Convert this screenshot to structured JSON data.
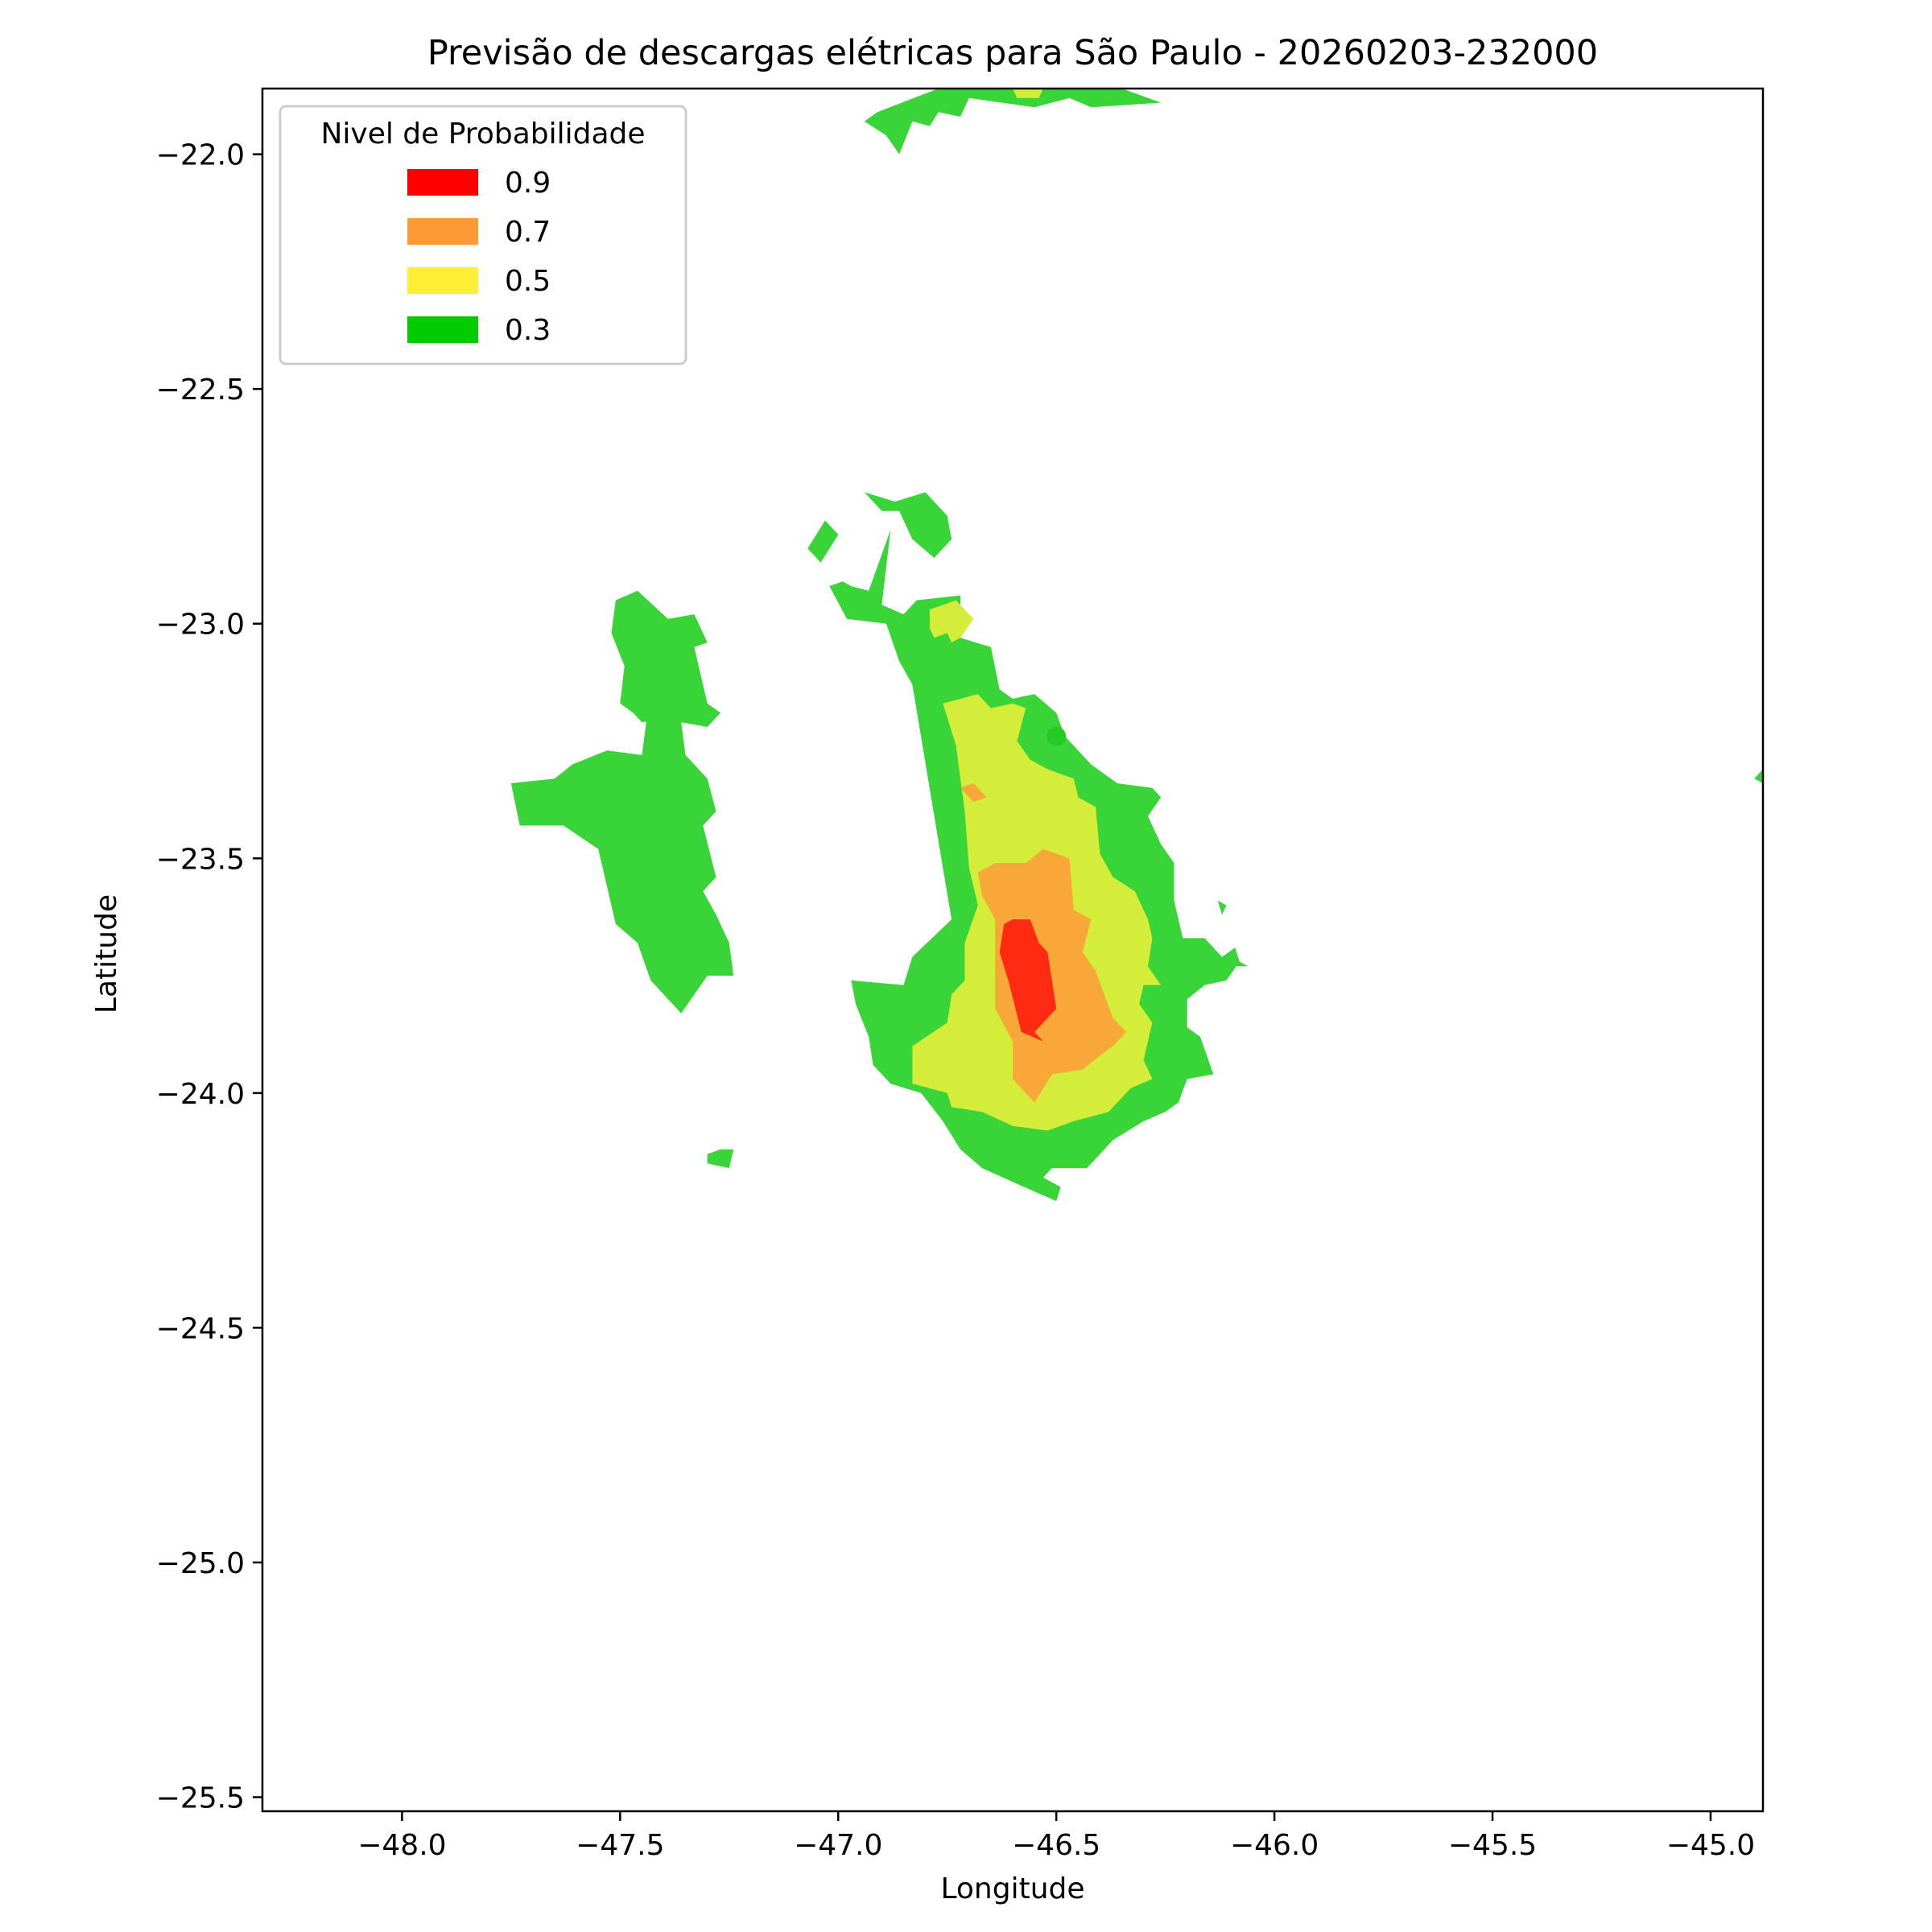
{
  "chart_data": {
    "type": "contour-map",
    "title": "Previsão de descargas elétricas para São Paulo - 20260203-232000",
    "xlabel": "Longitude",
    "ylabel": "Latitude",
    "xlim": [
      -48.32,
      -44.88
    ],
    "ylim": [
      -25.53,
      -21.86
    ],
    "x_ticks": [
      {
        "value": -48.0,
        "label": "−48.0"
      },
      {
        "value": -47.5,
        "label": "−47.5"
      },
      {
        "value": -47.0,
        "label": "−47.0"
      },
      {
        "value": -46.5,
        "label": "−46.5"
      },
      {
        "value": -46.0,
        "label": "−46.0"
      },
      {
        "value": -45.5,
        "label": "−45.5"
      },
      {
        "value": -45.0,
        "label": "−45.0"
      }
    ],
    "y_ticks": [
      {
        "value": -22.0,
        "label": "−22.0"
      },
      {
        "value": -22.5,
        "label": "−22.5"
      },
      {
        "value": -23.0,
        "label": "−23.0"
      },
      {
        "value": -23.5,
        "label": "−23.5"
      },
      {
        "value": -24.0,
        "label": "−24.0"
      },
      {
        "value": -24.5,
        "label": "−24.5"
      },
      {
        "value": -25.0,
        "label": "−25.0"
      },
      {
        "value": -25.5,
        "label": "−25.5"
      }
    ],
    "legend": {
      "title": "Nivel de Probabilidade",
      "placement": "upper-left",
      "entries": [
        {
          "label": "0.9",
          "color": "#ff0000"
        },
        {
          "label": "0.7",
          "color": "#ff9933"
        },
        {
          "label": "0.5",
          "color": "#ffee33"
        },
        {
          "label": "0.3",
          "color": "#00cc00"
        }
      ]
    },
    "fill_colors": {
      "0.3": "#38d438",
      "0.5": "#d4ed38",
      "0.7": "#f7a838",
      "0.9": "#ff2a12"
    },
    "marker": {
      "lon": -46.5,
      "lat": -23.24,
      "color": "#22cc22"
    },
    "regions": [
      {
        "level": "0.3",
        "points": [
          [
            -46.77,
            -21.86
          ],
          [
            -46.35,
            -21.86
          ],
          [
            -46.26,
            -21.89
          ],
          [
            -46.42,
            -21.9
          ],
          [
            -46.47,
            -21.88
          ],
          [
            -46.55,
            -21.9
          ],
          [
            -46.7,
            -21.88
          ],
          [
            -46.72,
            -21.92
          ],
          [
            -46.77,
            -21.91
          ],
          [
            -46.79,
            -21.94
          ],
          [
            -46.83,
            -21.93
          ],
          [
            -46.86,
            -22.0
          ],
          [
            -46.89,
            -21.96
          ],
          [
            -46.94,
            -21.93
          ],
          [
            -46.91,
            -21.91
          ]
        ]
      },
      {
        "level": "0.5",
        "points": [
          [
            -46.6,
            -21.86
          ],
          [
            -46.53,
            -21.86
          ],
          [
            -46.54,
            -21.88
          ],
          [
            -46.59,
            -21.88
          ]
        ]
      },
      {
        "level": "0.3",
        "points": [
          [
            -47.51,
            -22.95
          ],
          [
            -47.46,
            -22.93
          ],
          [
            -47.39,
            -22.99
          ],
          [
            -47.33,
            -22.98
          ],
          [
            -47.3,
            -23.04
          ],
          [
            -47.33,
            -23.05
          ],
          [
            -47.3,
            -23.17
          ],
          [
            -47.27,
            -23.19
          ],
          [
            -47.3,
            -23.22
          ],
          [
            -47.36,
            -23.21
          ],
          [
            -47.35,
            -23.28
          ],
          [
            -47.3,
            -23.33
          ],
          [
            -47.28,
            -23.4
          ],
          [
            -47.31,
            -23.43
          ],
          [
            -47.28,
            -23.54
          ],
          [
            -47.31,
            -23.57
          ],
          [
            -47.28,
            -23.62
          ],
          [
            -47.25,
            -23.68
          ],
          [
            -47.24,
            -23.75
          ],
          [
            -47.3,
            -23.75
          ],
          [
            -47.36,
            -23.83
          ],
          [
            -47.43,
            -23.76
          ],
          [
            -47.46,
            -23.68
          ],
          [
            -47.51,
            -23.64
          ],
          [
            -47.55,
            -23.48
          ],
          [
            -47.63,
            -23.43
          ],
          [
            -47.73,
            -23.43
          ],
          [
            -47.75,
            -23.34
          ],
          [
            -47.65,
            -23.33
          ],
          [
            -47.61,
            -23.3
          ],
          [
            -47.53,
            -23.27
          ],
          [
            -47.45,
            -23.28
          ],
          [
            -47.44,
            -23.21
          ],
          [
            -47.5,
            -23.17
          ],
          [
            -47.49,
            -23.09
          ],
          [
            -47.52,
            -23.02
          ]
        ]
      },
      {
        "level": "0.3",
        "points": [
          [
            -47.04,
            -22.87
          ],
          [
            -47.0,
            -22.81
          ],
          [
            -47.03,
            -22.78
          ],
          [
            -47.07,
            -22.84
          ]
        ]
      },
      {
        "level": "0.3",
        "points": [
          [
            -46.94,
            -22.72
          ],
          [
            -46.9,
            -22.76
          ],
          [
            -46.86,
            -22.76
          ],
          [
            -46.83,
            -22.82
          ],
          [
            -46.78,
            -22.86
          ],
          [
            -46.74,
            -22.82
          ],
          [
            -46.75,
            -22.77
          ],
          [
            -46.8,
            -22.72
          ],
          [
            -46.87,
            -22.74
          ]
        ]
      },
      {
        "level": "0.3",
        "points": [
          [
            -47.02,
            -22.92
          ],
          [
            -46.99,
            -22.91
          ],
          [
            -46.97,
            -22.92
          ],
          [
            -46.93,
            -22.93
          ],
          [
            -46.88,
            -22.8
          ],
          [
            -46.9,
            -22.96
          ],
          [
            -46.85,
            -22.98
          ],
          [
            -46.82,
            -22.95
          ],
          [
            -46.72,
            -22.94
          ],
          [
            -46.72,
            -23.03
          ],
          [
            -46.65,
            -23.05
          ],
          [
            -46.63,
            -23.14
          ],
          [
            -46.6,
            -23.16
          ],
          [
            -46.55,
            -23.15
          ],
          [
            -46.5,
            -23.19
          ],
          [
            -46.48,
            -23.24
          ],
          [
            -46.45,
            -23.27
          ],
          [
            -46.42,
            -23.3
          ],
          [
            -46.36,
            -23.34
          ],
          [
            -46.28,
            -23.35
          ],
          [
            -46.26,
            -23.37
          ],
          [
            -46.29,
            -23.41
          ],
          [
            -46.26,
            -23.47
          ],
          [
            -46.23,
            -23.51
          ],
          [
            -46.23,
            -23.59
          ],
          [
            -46.21,
            -23.67
          ],
          [
            -46.16,
            -23.67
          ],
          [
            -46.12,
            -23.71
          ],
          [
            -46.09,
            -23.69
          ],
          [
            -46.08,
            -23.72
          ],
          [
            -46.11,
            -23.76
          ],
          [
            -46.16,
            -23.77
          ],
          [
            -46.2,
            -23.8
          ],
          [
            -46.2,
            -23.86
          ],
          [
            -46.17,
            -23.88
          ],
          [
            -46.14,
            -23.96
          ],
          [
            -46.2,
            -23.97
          ],
          [
            -46.22,
            -24.02
          ],
          [
            -46.25,
            -24.04
          ],
          [
            -46.3,
            -24.06
          ],
          [
            -46.37,
            -24.1
          ],
          [
            -46.43,
            -24.16
          ],
          [
            -46.51,
            -24.16
          ],
          [
            -46.53,
            -24.18
          ],
          [
            -46.49,
            -24.2
          ],
          [
            -46.5,
            -24.23
          ],
          [
            -46.55,
            -24.21
          ],
          [
            -46.67,
            -24.16
          ],
          [
            -46.72,
            -24.12
          ],
          [
            -46.76,
            -24.06
          ],
          [
            -46.81,
            -24.0
          ],
          [
            -46.88,
            -23.98
          ],
          [
            -46.92,
            -23.94
          ],
          [
            -46.93,
            -23.88
          ],
          [
            -46.96,
            -23.81
          ],
          [
            -46.97,
            -23.76
          ],
          [
            -46.85,
            -23.77
          ],
          [
            -46.83,
            -23.71
          ],
          [
            -46.74,
            -23.63
          ],
          [
            -46.76,
            -23.52
          ],
          [
            -46.83,
            -23.13
          ],
          [
            -46.86,
            -23.08
          ],
          [
            -46.89,
            -23.0
          ],
          [
            -46.98,
            -22.99
          ]
        ]
      },
      {
        "level": "0.3",
        "points": [
          [
            -47.39,
            -23.17
          ],
          [
            -47.45,
            -23.17
          ],
          [
            -47.47,
            -23.19
          ],
          [
            -47.45,
            -23.21
          ],
          [
            -47.4,
            -23.2
          ]
        ]
      },
      {
        "level": "0.3",
        "points": [
          [
            -47.24,
            -24.12
          ],
          [
            -47.25,
            -24.16
          ],
          [
            -47.3,
            -24.15
          ],
          [
            -47.3,
            -24.13
          ],
          [
            -47.27,
            -24.12
          ]
        ]
      },
      {
        "level": "0.3",
        "points": [
          [
            -46.08,
            -23.72
          ],
          [
            -46.06,
            -23.73
          ],
          [
            -46.09,
            -23.73
          ]
        ]
      },
      {
        "level": "0.3",
        "points": [
          [
            -46.13,
            -23.59
          ],
          [
            -46.11,
            -23.6
          ],
          [
            -46.12,
            -23.62
          ]
        ]
      },
      {
        "level": "0.3",
        "points": [
          [
            -44.88,
            -23.31
          ],
          [
            -44.9,
            -23.33
          ],
          [
            -44.88,
            -23.34
          ]
        ]
      },
      {
        "level": "0.5",
        "points": [
          [
            -46.79,
            -22.97
          ],
          [
            -46.73,
            -22.95
          ],
          [
            -46.69,
            -22.99
          ],
          [
            -46.72,
            -23.03
          ],
          [
            -46.74,
            -23.04
          ],
          [
            -46.75,
            -23.02
          ],
          [
            -46.78,
            -23.03
          ],
          [
            -46.79,
            -23.01
          ]
        ]
      },
      {
        "level": "0.5",
        "points": [
          [
            -46.76,
            -23.17
          ],
          [
            -46.68,
            -23.15
          ],
          [
            -46.65,
            -23.18
          ],
          [
            -46.6,
            -23.17
          ],
          [
            -46.57,
            -23.18
          ],
          [
            -46.59,
            -23.25
          ],
          [
            -46.56,
            -23.29
          ],
          [
            -46.52,
            -23.31
          ],
          [
            -46.46,
            -23.33
          ],
          [
            -46.45,
            -23.37
          ],
          [
            -46.41,
            -23.39
          ],
          [
            -46.4,
            -23.49
          ],
          [
            -46.37,
            -23.54
          ],
          [
            -46.32,
            -23.57
          ],
          [
            -46.29,
            -23.63
          ],
          [
            -46.28,
            -23.67
          ],
          [
            -46.29,
            -23.73
          ],
          [
            -46.26,
            -23.77
          ],
          [
            -46.3,
            -23.77
          ],
          [
            -46.31,
            -23.81
          ],
          [
            -46.28,
            -23.85
          ],
          [
            -46.3,
            -23.93
          ],
          [
            -46.28,
            -23.97
          ],
          [
            -46.33,
            -23.99
          ],
          [
            -46.38,
            -24.04
          ],
          [
            -46.46,
            -24.06
          ],
          [
            -46.52,
            -24.08
          ],
          [
            -46.6,
            -24.07
          ],
          [
            -46.67,
            -24.04
          ],
          [
            -46.74,
            -24.03
          ],
          [
            -46.75,
            -24.0
          ],
          [
            -46.83,
            -23.98
          ],
          [
            -46.83,
            -23.9
          ],
          [
            -46.75,
            -23.85
          ],
          [
            -46.74,
            -23.79
          ],
          [
            -46.71,
            -23.76
          ],
          [
            -46.71,
            -23.68
          ],
          [
            -46.68,
            -23.6
          ],
          [
            -46.7,
            -23.52
          ],
          [
            -46.71,
            -23.4
          ],
          [
            -46.73,
            -23.26
          ]
        ]
      },
      {
        "level": "0.7",
        "points": [
          [
            -46.68,
            -23.53
          ],
          [
            -46.64,
            -23.51
          ],
          [
            -46.57,
            -23.51
          ],
          [
            -46.53,
            -23.48
          ],
          [
            -46.47,
            -23.5
          ],
          [
            -46.46,
            -23.61
          ],
          [
            -46.42,
            -23.63
          ],
          [
            -46.44,
            -23.7
          ],
          [
            -46.41,
            -23.74
          ],
          [
            -46.37,
            -23.84
          ],
          [
            -46.34,
            -23.87
          ],
          [
            -46.37,
            -23.9
          ],
          [
            -46.4,
            -23.92
          ],
          [
            -46.44,
            -23.95
          ],
          [
            -46.51,
            -23.96
          ],
          [
            -46.55,
            -24.02
          ],
          [
            -46.58,
            -23.99
          ],
          [
            -46.6,
            -23.97
          ],
          [
            -46.6,
            -23.89
          ],
          [
            -46.64,
            -23.82
          ],
          [
            -46.64,
            -23.73
          ],
          [
            -46.64,
            -23.63
          ],
          [
            -46.67,
            -23.58
          ]
        ]
      },
      {
        "level": "0.7",
        "points": [
          [
            -46.72,
            -23.35
          ],
          [
            -46.69,
            -23.34
          ],
          [
            -46.66,
            -23.37
          ],
          [
            -46.69,
            -23.38
          ]
        ]
      },
      {
        "level": "0.9",
        "points": [
          [
            -46.62,
            -23.64
          ],
          [
            -46.6,
            -23.63
          ],
          [
            -46.56,
            -23.63
          ],
          [
            -46.54,
            -23.68
          ],
          [
            -46.52,
            -23.7
          ],
          [
            -46.5,
            -23.82
          ],
          [
            -46.55,
            -23.87
          ],
          [
            -46.53,
            -23.89
          ],
          [
            -46.58,
            -23.87
          ],
          [
            -46.61,
            -23.76
          ],
          [
            -46.63,
            -23.7
          ]
        ]
      }
    ]
  }
}
